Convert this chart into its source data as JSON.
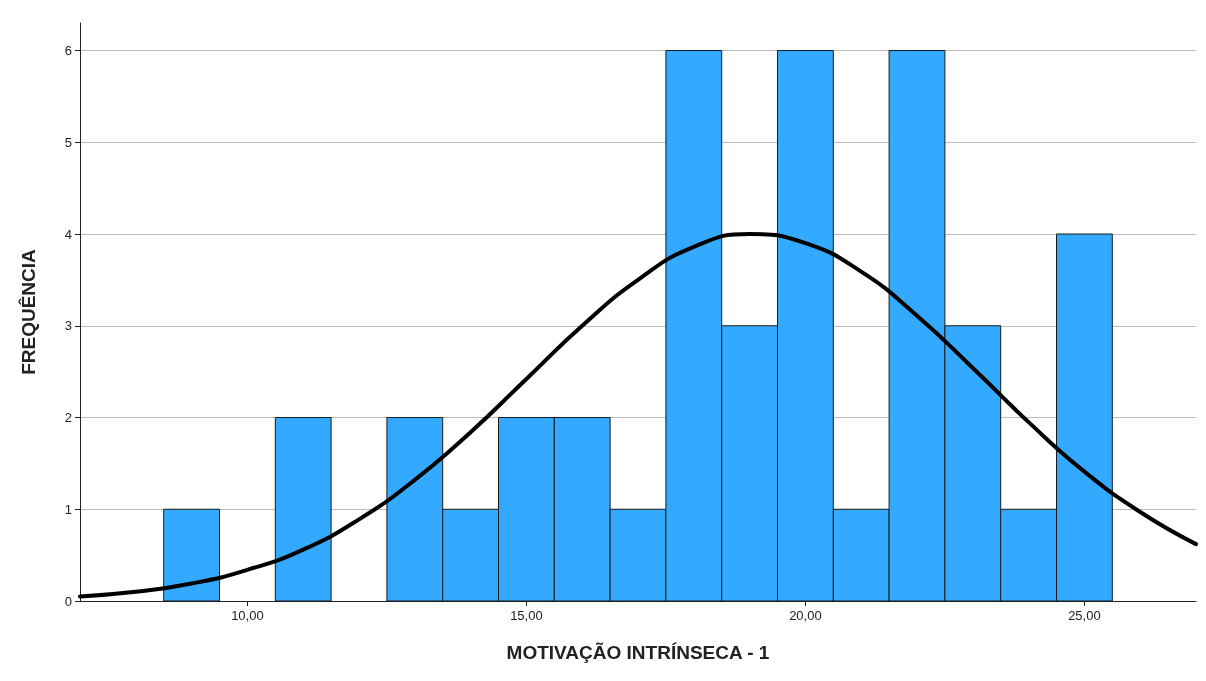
{
  "chart_data": {
    "type": "histogram",
    "xlabel": "MOTIVAÇÃO INTRÍNSECA - 1",
    "ylabel": "FREQUÊNCIA",
    "series": [
      {
        "color": "#33aaff",
        "bins": [
          8.5,
          9.5,
          10.5,
          11.5,
          12.5,
          13.5,
          14.5,
          15.5,
          16.5,
          17.5,
          18.5,
          19.5,
          20.5,
          21.5,
          22.5,
          23.5,
          24.5,
          25.5
        ],
        "values": [
          1,
          0,
          2,
          0,
          2,
          1,
          2,
          2,
          1,
          6,
          3,
          6,
          1,
          6,
          3,
          1,
          4
        ]
      },
      {
        "type": "line",
        "color": "#000000",
        "x": [
          7,
          8,
          9,
          10,
          11,
          12,
          13,
          14,
          15,
          16,
          17,
          18,
          19,
          20,
          21,
          22,
          23,
          24,
          25,
          26,
          27
        ],
        "values": [
          0.05,
          0.1,
          0.19,
          0.34,
          0.56,
          0.89,
          1.32,
          1.84,
          2.42,
          3.0,
          3.5,
          3.86,
          4.0,
          3.9,
          3.59,
          3.11,
          2.54,
          1.95,
          1.41,
          0.97,
          0.62
        ]
      }
    ],
    "xlim": [
      7,
      27
    ],
    "xticks": [
      {
        "value": 10,
        "label": "10,00"
      },
      {
        "value": 15,
        "label": "15,00"
      },
      {
        "value": 20,
        "label": "20,00"
      },
      {
        "value": 25,
        "label": "25,00"
      }
    ],
    "ylim": [
      0,
      6.3
    ],
    "yticks": [
      0,
      1,
      2,
      3,
      4,
      5,
      6
    ],
    "grid": "y"
  }
}
